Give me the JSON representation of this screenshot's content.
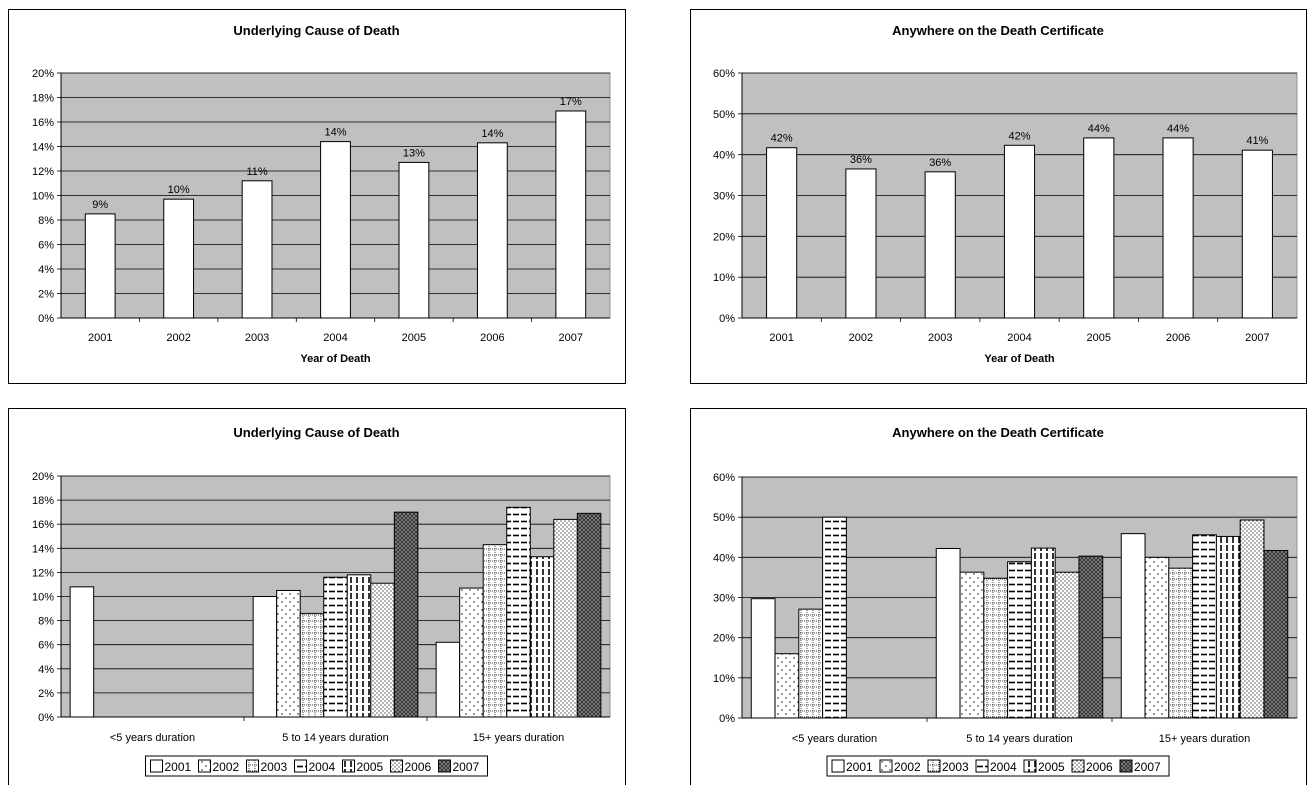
{
  "colors": {
    "plot_background": "#c0c0c0",
    "bar_fill": "#ffffff",
    "bar_stroke": "#000000",
    "gridline": "#000000"
  },
  "chart_data": [
    {
      "type": "bar",
      "title": "Underlying Cause of Death",
      "xlabel": "Year of Death",
      "ylabel": "",
      "categories": [
        "2001",
        "2002",
        "2003",
        "2004",
        "2005",
        "2006",
        "2007"
      ],
      "values": [
        8.5,
        9.7,
        11.2,
        14.4,
        12.7,
        14.3,
        16.9
      ],
      "data_labels": [
        "9%",
        "10%",
        "11%",
        "14%",
        "13%",
        "14%",
        "17%"
      ],
      "ylim": [
        0,
        20
      ],
      "yticks": [
        "0%",
        "2%",
        "4%",
        "6%",
        "8%",
        "10%",
        "12%",
        "14%",
        "16%",
        "18%",
        "20%"
      ],
      "grid": true
    },
    {
      "type": "bar",
      "title": "Anywhere on the Death Certificate",
      "xlabel": "Year of Death",
      "ylabel": "",
      "categories": [
        "2001",
        "2002",
        "2003",
        "2004",
        "2005",
        "2006",
        "2007"
      ],
      "values": [
        41.7,
        36.5,
        35.8,
        42.3,
        44.1,
        44.1,
        41.1
      ],
      "data_labels": [
        "42%",
        "36%",
        "36%",
        "42%",
        "44%",
        "44%",
        "41%"
      ],
      "ylim": [
        0,
        60
      ],
      "yticks": [
        "0%",
        "10%",
        "20%",
        "30%",
        "40%",
        "50%",
        "60%"
      ],
      "grid": true
    },
    {
      "type": "bar",
      "title": "Underlying Cause of Death",
      "xlabel": "",
      "ylabel": "",
      "categories": [
        "<5 years duration",
        "5 to 14 years duration",
        "15+ years duration"
      ],
      "series": [
        {
          "name": "2001",
          "values": [
            10.8,
            10.0,
            6.2
          ]
        },
        {
          "name": "2002",
          "values": [
            null,
            10.5,
            10.7
          ]
        },
        {
          "name": "2003",
          "values": [
            null,
            8.6,
            14.3
          ]
        },
        {
          "name": "2004",
          "values": [
            null,
            11.6,
            17.4
          ]
        },
        {
          "name": "2005",
          "values": [
            null,
            11.8,
            13.3
          ]
        },
        {
          "name": "2006",
          "values": [
            null,
            11.1,
            16.4
          ]
        },
        {
          "name": "2007",
          "values": [
            null,
            17.0,
            16.9
          ]
        }
      ],
      "ylim": [
        0,
        20
      ],
      "yticks": [
        "0%",
        "2%",
        "4%",
        "6%",
        "8%",
        "10%",
        "12%",
        "14%",
        "16%",
        "18%",
        "20%"
      ],
      "grid": true,
      "legend": "bottom"
    },
    {
      "type": "bar",
      "title": "Anywhere on the Death Certificate",
      "xlabel": "",
      "ylabel": "",
      "categories": [
        "<5 years duration",
        "5 to 14 years duration",
        "15+ years duration"
      ],
      "series": [
        {
          "name": "2001",
          "values": [
            29.7,
            42.2,
            45.9
          ]
        },
        {
          "name": "2002",
          "values": [
            16.0,
            36.3,
            40.0
          ]
        },
        {
          "name": "2003",
          "values": [
            27.1,
            34.8,
            37.3
          ]
        },
        {
          "name": "2004",
          "values": [
            50.0,
            38.9,
            45.6
          ]
        },
        {
          "name": "2005",
          "values": [
            null,
            42.3,
            45.2
          ]
        },
        {
          "name": "2006",
          "values": [
            null,
            36.3,
            49.3
          ]
        },
        {
          "name": "2007",
          "values": [
            null,
            40.3,
            41.7
          ]
        }
      ],
      "ylim": [
        0,
        60
      ],
      "yticks": [
        "0%",
        "10%",
        "20%",
        "30%",
        "40%",
        "50%",
        "60%"
      ],
      "grid": true,
      "legend": "bottom"
    }
  ]
}
